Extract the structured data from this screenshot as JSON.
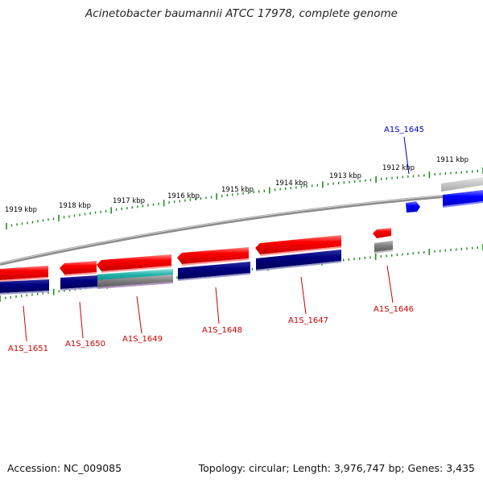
{
  "title": "Acinetobacter baumannii ATCC 17978, complete genome",
  "footer": {
    "accession": "Accession: NC_009085",
    "summary": "Topology: circular; Length: 3,976,747 bp; Genes: 3,435"
  },
  "scale_labels": [
    "1911 kbp",
    "1912 kbp",
    "1913 kbp",
    "1914 kbp",
    "1915 kbp",
    "1916 kbp",
    "1917 kbp",
    "1918 kbp",
    "1919 kbp"
  ],
  "genes": [
    {
      "label": "A1S_1645",
      "color": "#0000cc"
    },
    {
      "label": "A1S_1646",
      "color": "#cc0000"
    },
    {
      "label": "A1S_1647",
      "color": "#cc0000"
    },
    {
      "label": "A1S_1648",
      "color": "#cc0000"
    },
    {
      "label": "A1S_1649",
      "color": "#cc0000"
    },
    {
      "label": "A1S_1650",
      "color": "#cc0000"
    },
    {
      "label": "A1S_1651",
      "color": "#cc0000"
    }
  ],
  "colors": {
    "forward_gene": "#ff0000",
    "reverse_gene": "#0000ff",
    "forward_cds": "#000080",
    "rna_feature": "#20b2aa",
    "other_feature": "#808080",
    "backbone": "#808080",
    "tick": "#228b22"
  }
}
